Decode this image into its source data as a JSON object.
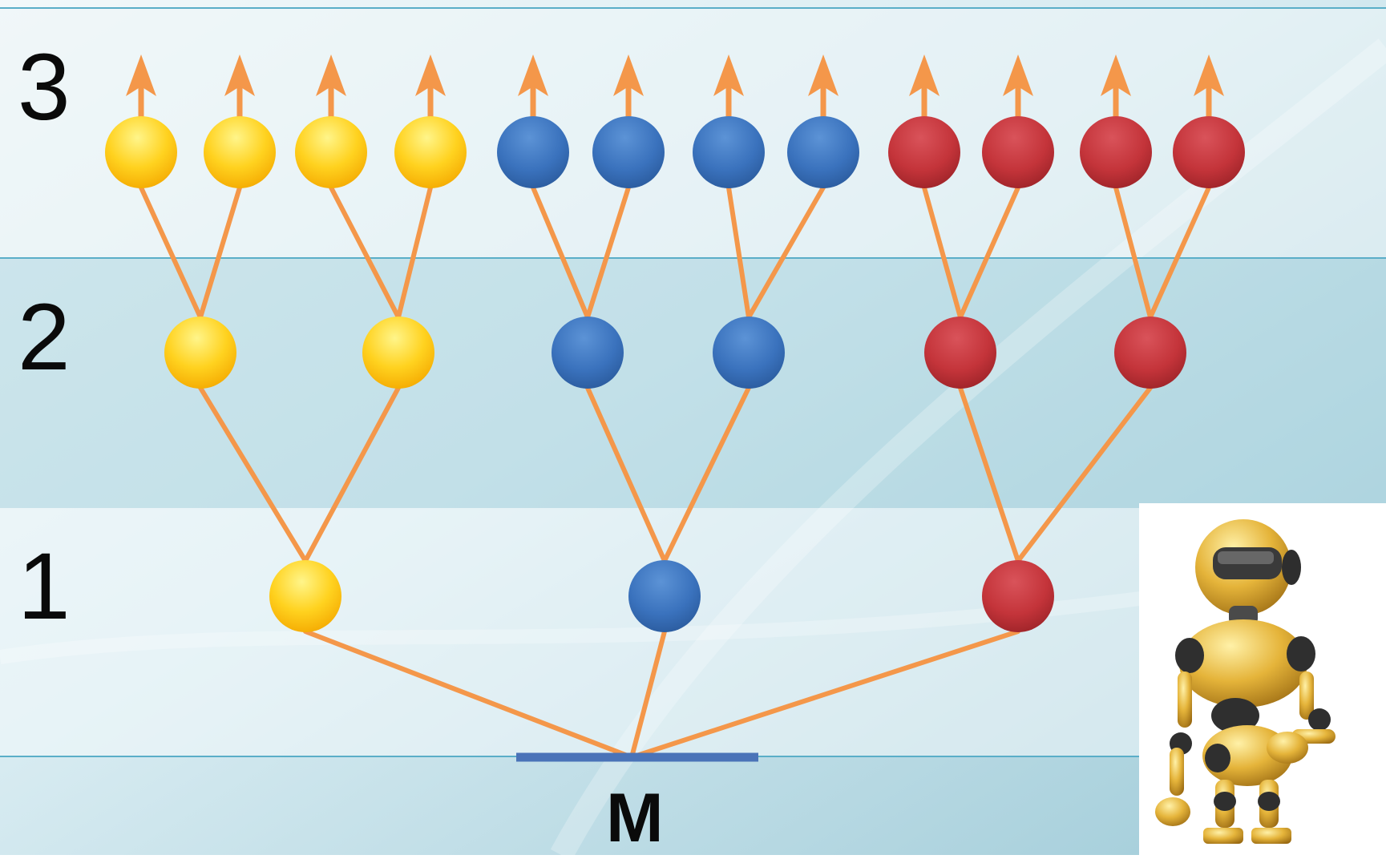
{
  "levels": [
    "1",
    "2",
    "3"
  ],
  "origin_label": "M",
  "colors": {
    "branch_line": "#f4974a",
    "baseline": "#4a73b8",
    "yellow": "#ffd21f",
    "blue": "#3a72bd",
    "red": "#c4343a",
    "background_band_light": "#eaf3f6",
    "background_band_dark": "#c8e2ea",
    "rule_line": "#5aaec8"
  },
  "tree": {
    "branches": [
      {
        "color_key": "yellow",
        "level1": {
          "children": [
            {
              "children": 2
            },
            {
              "children": 2
            }
          ]
        }
      },
      {
        "color_key": "blue",
        "level1": {
          "children": [
            {
              "children": 2
            },
            {
              "children": 2
            }
          ]
        }
      },
      {
        "color_key": "red",
        "level1": {
          "children": [
            {
              "children": 2
            },
            {
              "children": 2
            }
          ]
        }
      }
    ],
    "top_level_arrows": true
  },
  "robot_figure": "golden-robot-image"
}
